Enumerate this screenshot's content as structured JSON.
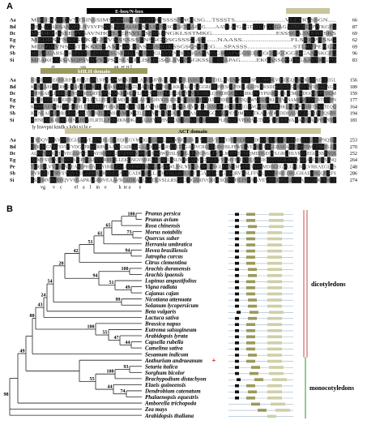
{
  "panel_a": {
    "label": "A",
    "domains": [
      {
        "name": "E-box/N-box",
        "color": "#000000",
        "text_color": "#ffffff"
      },
      {
        "name": "bHLH domain",
        "color": "#9b9a5e",
        "text_color": "#ffffff"
      },
      {
        "name": "ACT domain",
        "color": "#c8c69a",
        "text_color": "#000000"
      }
    ],
    "blocks": [
      {
        "rows": [
          {
            "id": "Aa",
            "seq": "MEGEVGGEVNTSINSSIMSGEGSKEKGITRTSSSSNNGKSG....TSSSTS..............................VLETRVSSGN.....",
            "end": "66"
          },
          {
            "id": "Bd",
            "seq": "MEAKGARSASQPSLNVSVPSKSLSRKAIAEGSGLSVNSSGKSCSSAPAG.......AATHAPGAGTATGTGAGAGADNGEDDVTKGFQ",
            "end": "87"
          },
          {
            "id": "Dc",
            "seq": "MEDKEGSSENYSAVNHGHAEPSVLPSSSSENGKLSSTMKG.....................................ESSSGAAVERSSKS",
            "end": "69"
          },
          {
            "id": "Eg",
            "seq": "MEDRSVNSTSRKDLSIVKSSSSSSNSSGQSGSSSGAG......NAASS..........................FLSRRPASSG",
            "end": "62"
          },
          {
            "id": "Pe",
            "seq": "MENGSVNSNSTSKKESSAMPSSGSASSGSSGKSSGSGSSKEG.....SPASSS...........................STLRVPEALA",
            "end": "69"
          },
          {
            "id": "Sb",
            "seq": "MEAKGARSASQPSVNASVPSKSLSRRKLAAEGSGLSVNNSSESSGAAAPAGSGAPSGGSEEEEGGSGGDGGRSGAAVSKGFQ",
            "end": "96"
          },
          {
            "id": "Si",
            "seq": "MEAKGASSASQPSVNVSVPSKSLSRRLISGEGSGLSVNSSGKSS.....SSAPAG..........EKGASSGGRSGAAVSKGFQ",
            "end": "83"
          }
        ],
        "consensus": "                 ei                     sss                       an  er rr l"
      },
      {
        "rows": [
          {
            "id": "Aa",
            "seq": "KHNEAERERRKRINAHLATLRTLVPNASKMDKATLLAEVISHVKELKRNATEIADGSIIPSEIDELKVENDCESGSPSLNHDKVIISDGQLMVKAMAECEEGL",
            "end": "156"
          },
          {
            "id": "Bd",
            "seq": "KHNEAEKERRKRINAHLTTLRTLLPDASKMDKATLLAEVVTHVKKLKKQAAETAGGRLPLPPESDLPDQLKADVVKSDDRESTEGRNIIVPVIHPAEAGK",
            "end": "189"
          },
          {
            "id": "Dc",
            "seq": "KHNEAEKRRRKRINSHLRTLRTLVPNANKMDKATLLAEVINHVKELKRIATEVCEGSLLQPHDIGKSLRERKHVIYPSSSSEEKLEMLKDGGKVPTDGM",
            "end": "159"
          },
          {
            "id": "Eg",
            "seq": "KHNEAERRRRERINAHLTTLRTLLPDAKKMDKATLLAEVIGHVKDLKRNATEIAAHGLHLTNMDDELKPDQNWNKGKIKLKEVSSAMDMTTVGVITSSPN",
            "end": "177"
          },
          {
            "id": "Pe",
            "seq": "KHNEAERRRRERINAHLTTLRTLLPDAKKMDKATLLAEVINHVKDLKRNAIEVVGQGAMLRGHEKLDEGEWQKSALESKRKLASHPNAMTSAATEQQ",
            "end": "164"
          },
          {
            "id": "Sb",
            "seq": "KHNEAEKRRRKRINAHLTTLRTLLPNSEKMDKATLLAEVVTHVKKLKKQAADIAGGGLPLPPESDMPDQTKADAVKSDDRASVGDSTIIPVIQSRV",
            "end": "194"
          },
          {
            "id": "Si",
            "seq": "KHNEAEKRRRKRINAHLATLRTLLPNSRKMDKATLLAEVITHVKKLKKQAADIAEGGLPLPPESDVPDQVKTDAVKTDDSVAAASPAAAPPPPPPP",
            "end": "181"
          }
        ],
        "consensus": " ly lrsvvpni kmdk s kdai yi lq e"
      },
      {
        "rows": [
          {
            "id": "Aa",
            "seq": "ITRDQVRVKVHNIEGIAAEVEAYIRRLCLLEQHEGVMAKLSEIRWLSSLNVIGADVIGNGLEVVLMVFFEVEIQMDDGEGVLGLLNTLVREGEGLRSSPNQSIR",
            "end": "253"
          },
          {
            "id": "Bd",
            "seq": "RVRDHGVRVSVQVVDGAPRAGRRVEAAVSCADRAGLLADLVSLLRSLSLTIIGARIVCRGESQRVHSLFFWLKVEVHIEDRLGHAEARLQRRFSMCFRKFLLA",
            "end": "270"
          },
          {
            "id": "Dc",
            "seq": "ALKVSIVKSHNVEGIAPNEVEAYIRRLCLLEQHDGVMEKLSEIRWLSSLNVIGADVIGNGLEVVLMVFFEVEIQMDDGEGVLGRLHILVREGEGLRSSPNQS",
            "end": "252"
          },
          {
            "id": "Eg",
            "seq": "ALMVSVVKSHNVEAIEPNEAEVYIRRLCLLEKQNGVMEKLSEIRCLSSLNVIGADVIGNGLEVVLMVFFEVEIQMDDGEGVLGILNTLVRKAEGLRSSPNQ",
            "end": "264"
          },
          {
            "id": "Pe",
            "seq": "TLRISILVVRSHNVEASEPHEAEVYIRRLCLLEQHNGVMEKLSEIRWLSSLNVIGADVLGNGLEVVLMVFFEVEIQMDDGEGVLGLLNTLVRKAEGLRS",
            "end": "248"
          },
          {
            "id": "Sb",
            "seq": "RVRDHGVRVSVQVVEGAPRAGRRVEAAVSCADRAGLLADLVSLLRSLSLTIIGARIVCRGESQRVHSLFFWLKVEVHIEDRLGHAEARLQRRFS",
            "end": "286"
          },
          {
            "id": "Si",
            "seq": "LSRDRVRVSVQVVEGAPRAGRRVEAAVSCADRAGLLADLVSLLRSLSLTIIGARIVCRGESQRVHSLFFWLKVEVHIEDRLGHAEARLQRRFSMCF",
            "end": "274"
          }
        ],
        "consensus": "        vg      v    c          el    a    l    in    e          k  ie a       e"
      }
    ]
  },
  "panel_b": {
    "label": "B",
    "groups": [
      {
        "label": "dicotyledons",
        "color": "#c0504d"
      },
      {
        "label": "monocotyledons",
        "color": "#4aa845"
      }
    ],
    "marker": {
      "symbol": "+",
      "color": "#c00000"
    },
    "taxa": [
      {
        "name": "Prunus persica"
      },
      {
        "name": "Prunus avium"
      },
      {
        "name": "Rosa chinensis"
      },
      {
        "name": "Morus notabilis"
      },
      {
        "name": "Quercus suber"
      },
      {
        "name": "Herrania umbratica"
      },
      {
        "name": "Hevea brasiliensis"
      },
      {
        "name": "Jatropha curcas"
      },
      {
        "name": "Citrus clementina"
      },
      {
        "name": "Arachis duranensis"
      },
      {
        "name": "Arachis ipaensis"
      },
      {
        "name": "Lupinus angustifolius"
      },
      {
        "name": "Vigna radiata"
      },
      {
        "name": "Cajanus cajan"
      },
      {
        "name": "Nicotiana attenuata"
      },
      {
        "name": "Solanum lycopersicum"
      },
      {
        "name": "Beta vulgaris"
      },
      {
        "name": "Lactuca sativa"
      },
      {
        "name": "Brassica napus"
      },
      {
        "name": "Eutrema salsugineum"
      },
      {
        "name": "Arabidopsis lyrata"
      },
      {
        "name": "Capsella rubella"
      },
      {
        "name": "Camelina sativa"
      },
      {
        "name": "Sesamum indicum"
      },
      {
        "name": "Anthurium andraeanum"
      },
      {
        "name": "Setaria italica"
      },
      {
        "name": "Sorghum bicolor"
      },
      {
        "name": "Brachypodium distachyon"
      },
      {
        "name": "Elaeis guineensis"
      },
      {
        "name": "Dendrobium catenatum"
      },
      {
        "name": "Phalaenopsis equestris"
      },
      {
        "name": "Amborella trichopoda"
      },
      {
        "name": "Zea mays"
      },
      {
        "name": "Arabidopsis thaliana"
      }
    ],
    "bootstrap": [
      "100",
      "65",
      "73",
      "61",
      "94",
      "51",
      "42",
      "100",
      "51",
      "49",
      "94",
      "20",
      "54",
      "99",
      "43",
      "24",
      "100",
      "47",
      "44",
      "55",
      "100",
      "80",
      "93",
      "100",
      "55",
      "44",
      "74",
      "49",
      "98"
    ]
  }
}
